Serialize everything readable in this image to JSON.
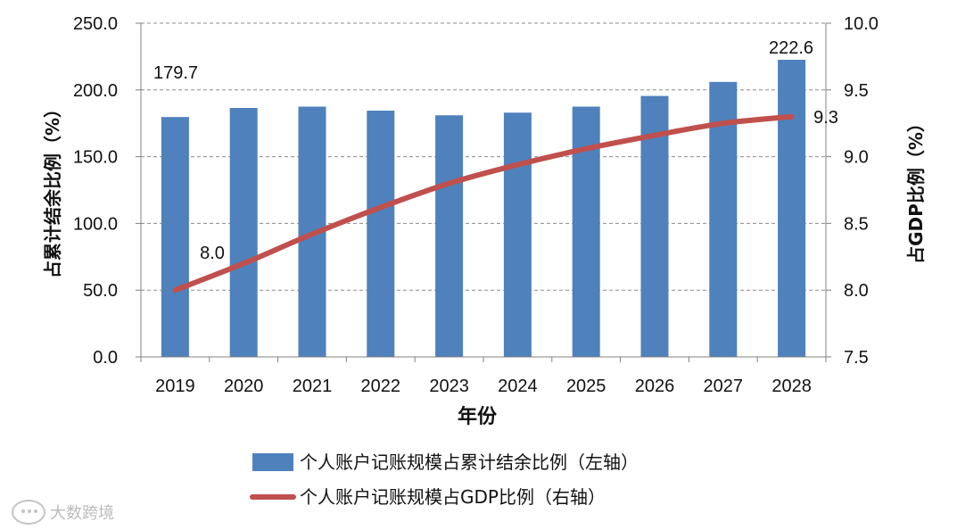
{
  "chart_data": {
    "type": "bar+line",
    "categories": [
      "2019",
      "2020",
      "2021",
      "2022",
      "2023",
      "2024",
      "2025",
      "2026",
      "2027",
      "2028"
    ],
    "series": [
      {
        "name": "个人账户记账规模占累计结余比例（左轴）",
        "type": "bar",
        "axis": "left",
        "color": "#4F81BD",
        "values": [
          179.7,
          186.5,
          187.5,
          184.5,
          181.0,
          183.0,
          187.5,
          195.5,
          206.0,
          222.6
        ]
      },
      {
        "name": "个人账户记账规模占GDP比例（右轴）",
        "type": "line",
        "axis": "right",
        "color": "#C0504D",
        "values": [
          8.0,
          8.2,
          8.42,
          8.62,
          8.8,
          8.94,
          9.06,
          9.16,
          9.25,
          9.3
        ]
      }
    ],
    "data_labels": {
      "bar_first": "179.7",
      "bar_last": "222.6",
      "line_first": "8.0",
      "line_last": "9.3"
    },
    "xlabel": "年份",
    "ylabel_left": "占累计结余比例（%）",
    "ylabel_right": "占GDP比例（%）",
    "ylim_left": [
      0,
      250
    ],
    "ylim_right": [
      7.5,
      10
    ],
    "yticks_left": [
      "0.0",
      "50.0",
      "100.0",
      "150.0",
      "200.0",
      "250.0"
    ],
    "yticks_right": [
      "7.5",
      "8.0",
      "8.5",
      "9.0",
      "9.5",
      "10.0"
    ],
    "grid": "horizontal dashed",
    "legend_position": "bottom"
  },
  "watermark": {
    "text": "大数跨境",
    "icon": "chat-bubble-icon"
  }
}
